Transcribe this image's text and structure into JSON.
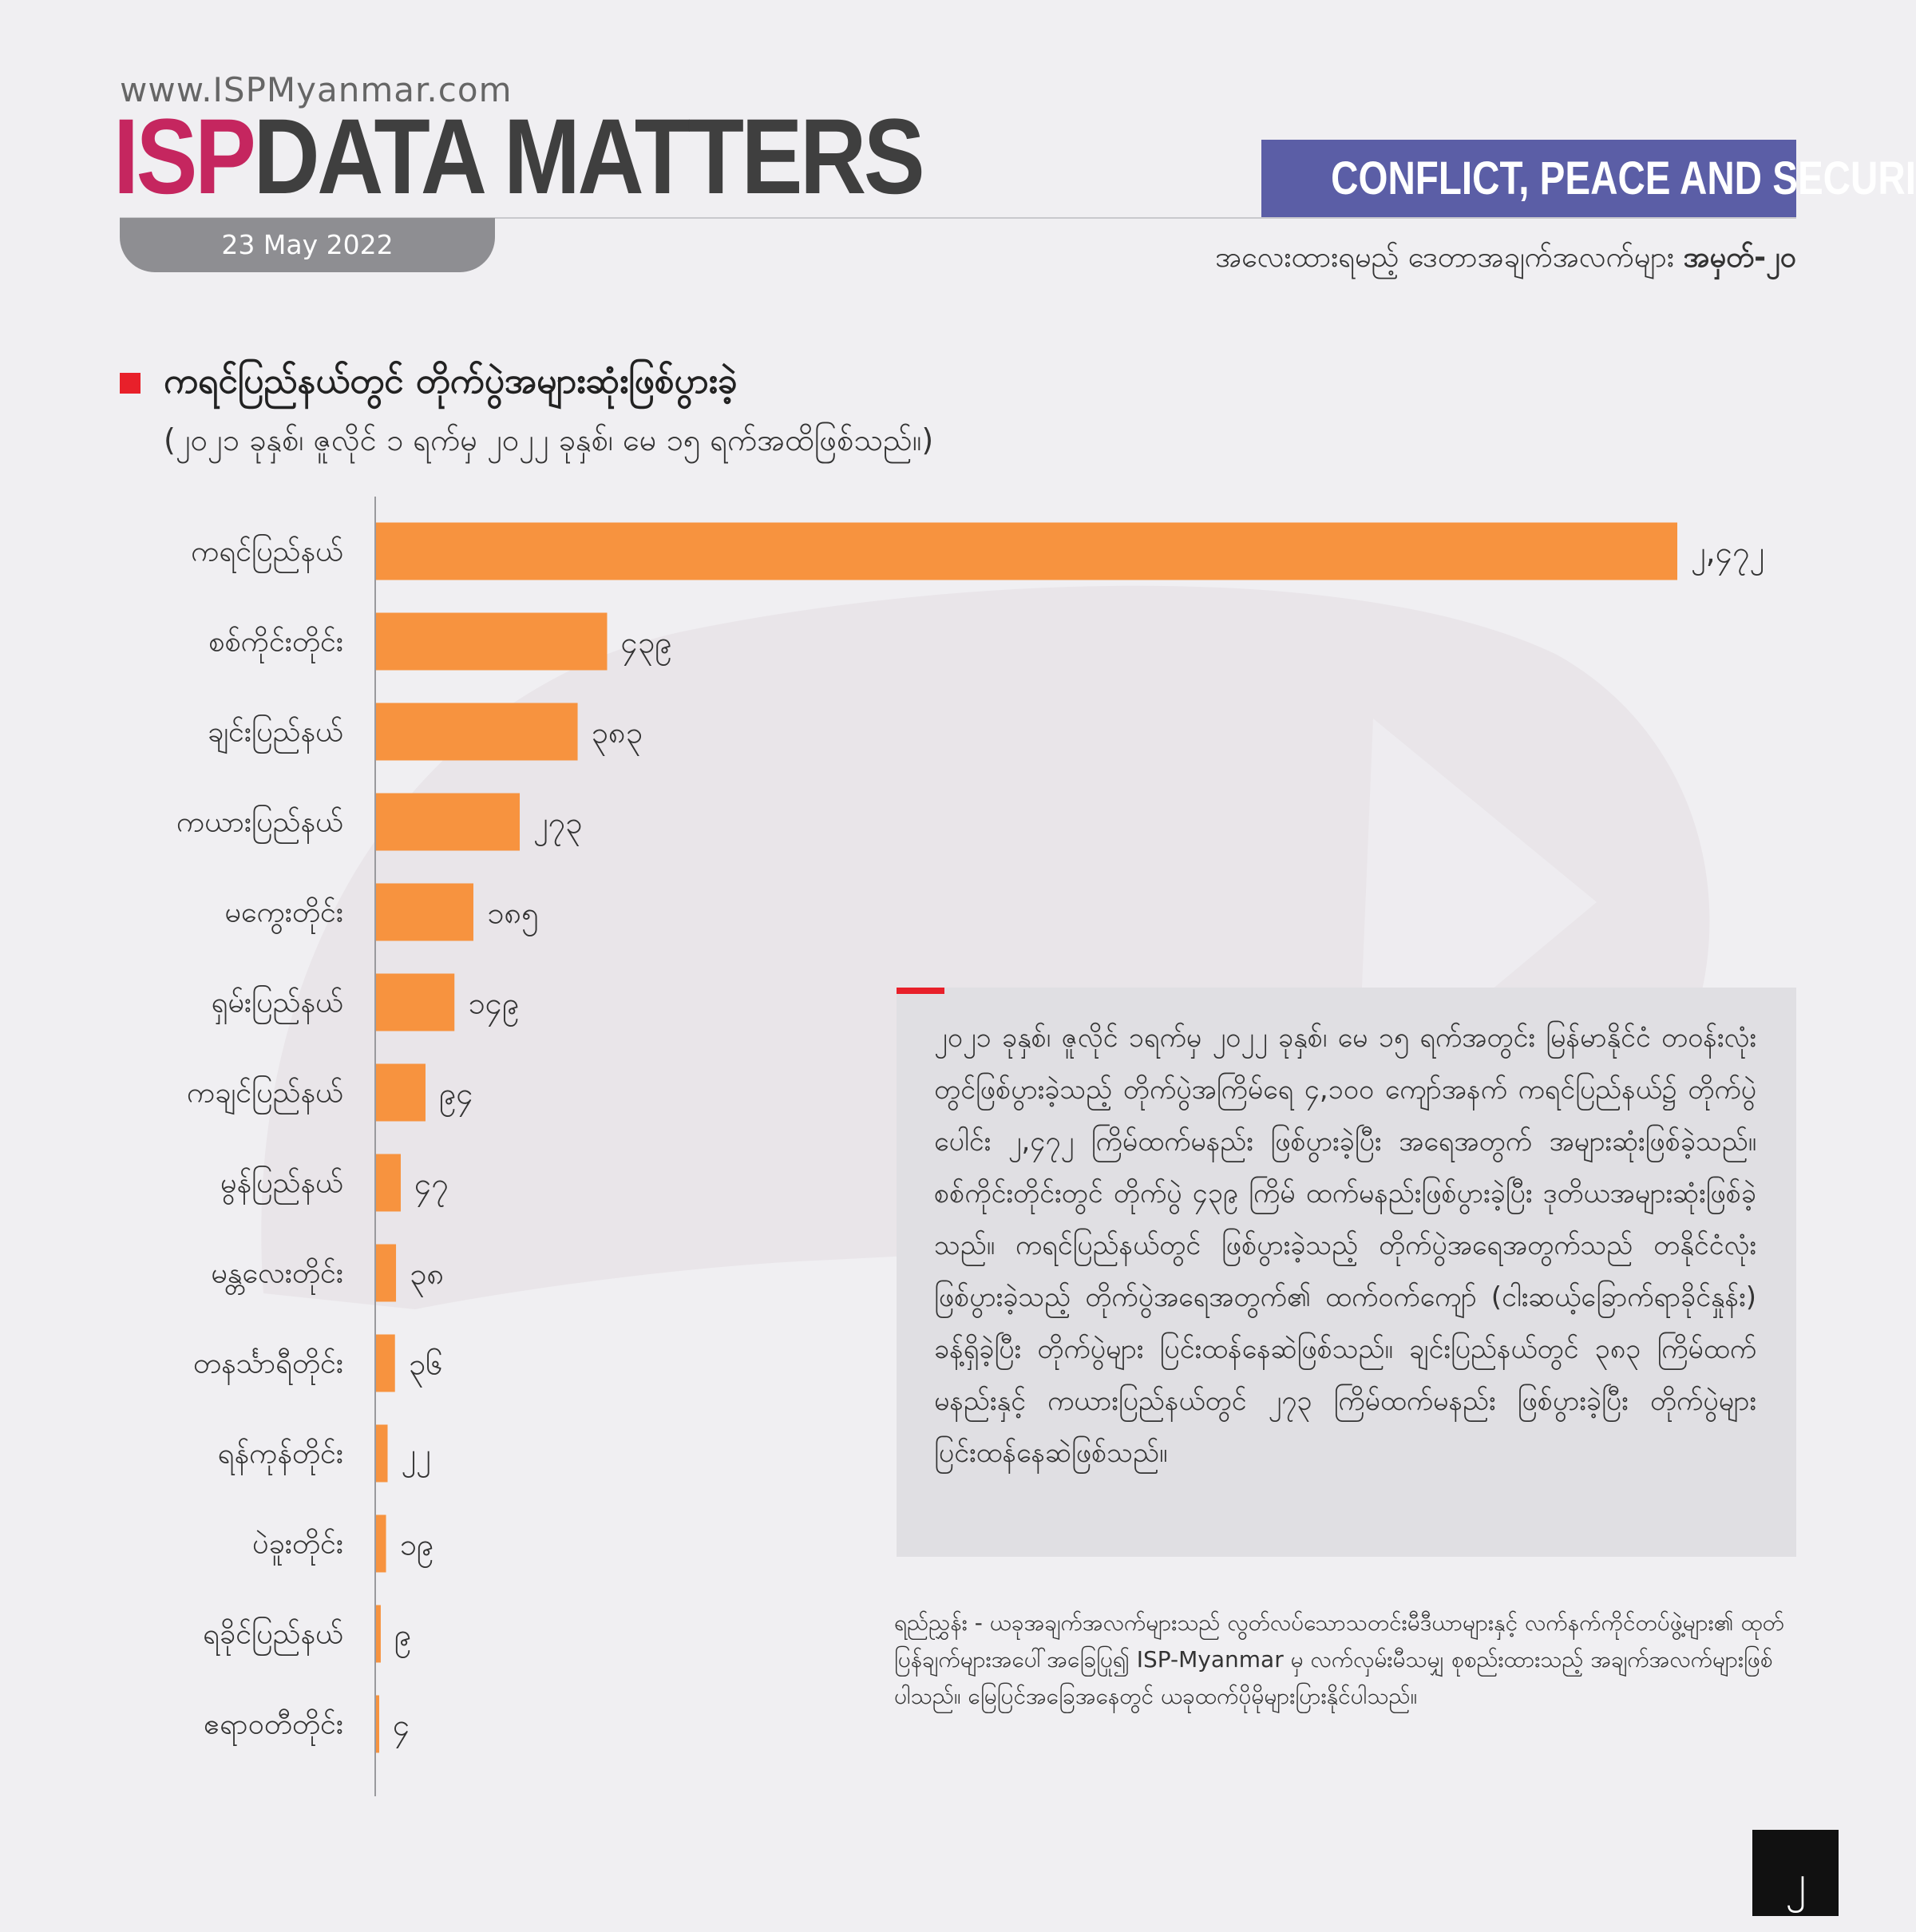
{
  "header": {
    "website": "www.ISPMyanmar.com",
    "logo_isp": "ISP",
    "logo_rest": "DATA MATTERS",
    "date": "23 May 2022",
    "category": "CONFLICT, PEACE AND SECURITY",
    "series_label": "အလေးထားရမည့် ဒေတာအချက်အလက်များ",
    "series_number": "အမှတ်-၂၀"
  },
  "chart_data": {
    "type": "bar",
    "orientation": "horizontal",
    "title": "ကရင်ပြည်နယ်တွင် တိုက်ပွဲအများဆုံးဖြစ်ပွားခဲ့",
    "subtitle": "(၂၀၂၁ ခုနှစ်၊ ဇူလိုင် ၁ ရက်မှ ၂၀၂၂ ခုနှစ်၊ မေ ၁၅ ရက်အထိဖြစ်သည်။)",
    "categories": [
      "ကရင်ပြည်နယ်",
      "စစ်ကိုင်းတိုင်း",
      "ချင်းပြည်နယ်",
      "ကယားပြည်နယ်",
      "မကွေးတိုင်း",
      "ရှမ်းပြည်နယ်",
      "ကချင်ပြည်နယ်",
      "မွန်ပြည်နယ်",
      "မန္တလေးတိုင်း",
      "တနင်္သာရီတိုင်း",
      "ရန်ကုန်တိုင်း",
      "ပဲခူးတိုင်း",
      "ရခိုင်ပြည်နယ်",
      "ဧရာဝတီတိုင်း"
    ],
    "values": [
      2472,
      439,
      383,
      273,
      185,
      149,
      94,
      47,
      38,
      36,
      22,
      19,
      9,
      4
    ],
    "value_labels": [
      "၂,၄၇၂",
      "၄၃၉",
      "၃၈၃",
      "၂၇၃",
      "၁၈၅",
      "၁၄၉",
      "၉၄",
      "၄၇",
      "၃၈",
      "၃၆",
      "၂၂",
      "၁၉",
      "၉",
      "၄"
    ],
    "xlim": [
      0,
      2472
    ],
    "bar_color": "#f7933f"
  },
  "note": {
    "text": "၂၀၂၁ ခုနှစ်၊ ဇူလိုင် ၁ရက်မှ ၂၀၂၂ ခုနှစ်၊ မေ ၁၅ ရက်အတွင်း မြန်မာနိုင်ငံ တဝန်းလုံးတွင်ဖြစ်ပွားခဲ့သည့် တိုက်ပွဲအကြိမ်ရေ ၄,၁၀၀ ကျော်အနက် ကရင်ပြည်နယ်၌ တိုက်ပွဲပေါင်း ၂,၄၇၂ ကြိမ်ထက်မနည်း ဖြစ်ပွားခဲ့ပြီး အရေအတွက် အများဆုံးဖြစ်ခဲ့သည်။ စစ်ကိုင်းတိုင်းတွင် တိုက်ပွဲ ၄၃၉ ကြိမ် ထက်မနည်းဖြစ်ပွားခဲ့ပြီး ဒုတိယအများဆုံးဖြစ်ခဲ့သည်။ ကရင်ပြည်နယ်တွင် ဖြစ်ပွားခဲ့သည့် တိုက်ပွဲအရေအတွက်သည် တနိုင်ငံလုံးဖြစ်ပွားခဲ့သည့် တိုက်ပွဲအရေအတွက်၏ ထက်ဝက်ကျော် (ငါးဆယ့်ခြောက်ရာခိုင်နှုန်း) ခန့်ရှိခဲ့ပြီး တိုက်ပွဲများ ပြင်းထန်နေဆဲဖြစ်သည်။ ချင်းပြည်နယ်တွင် ၃၈၃ ကြိမ်ထက်မနည်းနှင့် ကယားပြည်နယ်တွင် ၂၇၃ ကြိမ်ထက်မနည်း ဖြစ်ပွားခဲ့ပြီး တိုက်ပွဲများ ပြင်းထန်နေဆဲဖြစ်သည်။"
  },
  "source": {
    "text": "ရည်ညွှန်း - ယခုအချက်အလက်များသည် လွတ်လပ်သောသတင်းမီဒီယာများနှင့် လက်နက်ကိုင်တပ်ဖွဲ့များ၏ ထုတ်ပြန်ချက်များအပေါ်အခြေပြု၍ ISP-Myanmar မှ လက်လှမ်းမီသမျှ စုစည်းထားသည့် အချက်အလက်များဖြစ်ပါသည်။ မြေပြင်အခြေအနေတွင် ယခုထက်ပိုမိုများပြားနိုင်ပါသည်။"
  },
  "page": {
    "number": "၂"
  },
  "colors": {
    "accent_red": "#e8202a",
    "brand_magenta": "#c5265f",
    "category_blue": "#5b5ea6",
    "bar_orange": "#f7933f"
  }
}
